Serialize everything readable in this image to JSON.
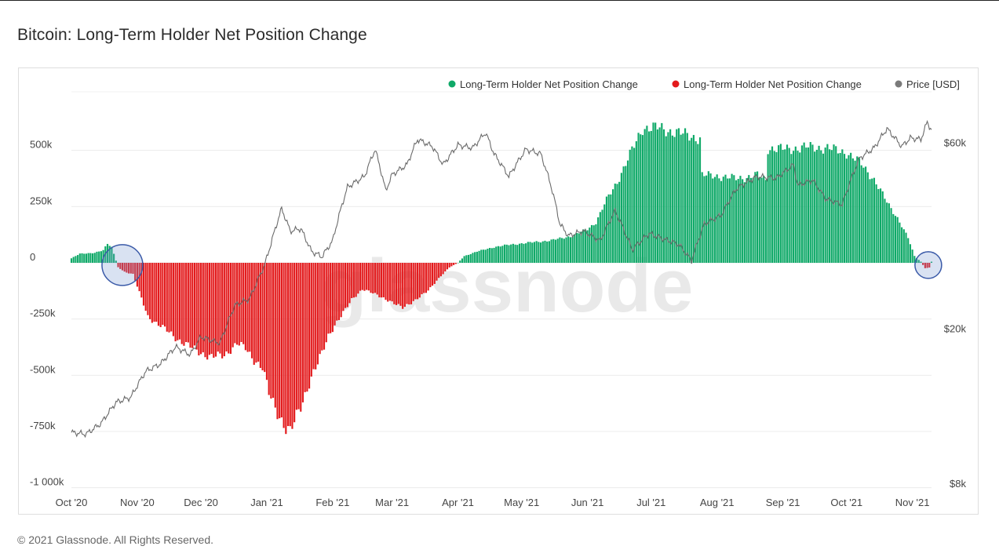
{
  "page": {
    "title": "Bitcoin: Long-Term Holder Net Position Change",
    "copyright": "© 2021 Glassnode. All Rights Reserved."
  },
  "chart_data": {
    "type": "bar",
    "watermark": "glassnode",
    "colors": {
      "positive": "#0fa968",
      "negative": "#e31a1c",
      "price": "#6b6b6b",
      "highlight": "#3a5aa8"
    },
    "legend": {
      "placement": "top-right",
      "items": [
        {
          "label": "Long-Term Holder Net Position Change",
          "color": "#0fa968"
        },
        {
          "label": "Long-Term Holder Net Position Change",
          "color": "#e31a1c"
        },
        {
          "label": "Price [USD]",
          "color": "#7a7a7a"
        }
      ]
    },
    "x_axis": {
      "start": "2020-10-01",
      "end": "2021-11-10",
      "ticks": [
        {
          "date": "2020-10-01",
          "label": "Oct '20"
        },
        {
          "date": "2020-11-01",
          "label": "Nov '20"
        },
        {
          "date": "2020-12-01",
          "label": "Dec '20"
        },
        {
          "date": "2021-01-01",
          "label": "Jan '21"
        },
        {
          "date": "2021-02-01",
          "label": "Feb '21"
        },
        {
          "date": "2021-03-01",
          "label": "Mar '21"
        },
        {
          "date": "2021-04-01",
          "label": "Apr '21"
        },
        {
          "date": "2021-05-01",
          "label": "May '21"
        },
        {
          "date": "2021-06-01",
          "label": "Jun '21"
        },
        {
          "date": "2021-07-01",
          "label": "Jul '21"
        },
        {
          "date": "2021-08-01",
          "label": "Aug '21"
        },
        {
          "date": "2021-09-01",
          "label": "Sep '21"
        },
        {
          "date": "2021-10-01",
          "label": "Oct '21"
        },
        {
          "date": "2021-11-01",
          "label": "Nov '21"
        }
      ]
    },
    "y_left": {
      "min": -1000000,
      "max": 600000,
      "ticks": [
        {
          "value": 500000,
          "label": "500k"
        },
        {
          "value": 250000,
          "label": "250k"
        },
        {
          "value": 0,
          "label": "0"
        },
        {
          "value": -250000,
          "label": "-250k"
        },
        {
          "value": -500000,
          "label": "-500k"
        },
        {
          "value": -750000,
          "label": "-750k"
        },
        {
          "value": -1000000,
          "label": "-1 000k"
        }
      ]
    },
    "y_right": {
      "scale": "log",
      "min": 8000,
      "max": 70000,
      "ticks": [
        {
          "value": 60000,
          "label": "$60k"
        },
        {
          "value": 20000,
          "label": "$20k"
        },
        {
          "value": 8000,
          "label": "$8k"
        }
      ]
    },
    "net_position_keyframes": [
      [
        "2020-10-01",
        20000
      ],
      [
        "2020-10-05",
        40000
      ],
      [
        "2020-10-12",
        45000
      ],
      [
        "2020-10-16",
        55000
      ],
      [
        "2020-10-18",
        85000
      ],
      [
        "2020-10-20",
        70000
      ],
      [
        "2020-10-23",
        -20000
      ],
      [
        "2020-10-26",
        -40000
      ],
      [
        "2020-10-30",
        -50000
      ],
      [
        "2020-11-03",
        -160000
      ],
      [
        "2020-11-06",
        -240000
      ],
      [
        "2020-11-12",
        -280000
      ],
      [
        "2020-11-20",
        -340000
      ],
      [
        "2020-11-27",
        -380000
      ],
      [
        "2020-12-01",
        -400000
      ],
      [
        "2020-12-06",
        -420000
      ],
      [
        "2020-12-12",
        -410000
      ],
      [
        "2020-12-18",
        -360000
      ],
      [
        "2020-12-22",
        -380000
      ],
      [
        "2020-12-26",
        -430000
      ],
      [
        "2020-12-30",
        -470000
      ],
      [
        "2021-01-02",
        -580000
      ],
      [
        "2021-01-06",
        -660000
      ],
      [
        "2021-01-10",
        -740000
      ],
      [
        "2021-01-12",
        -760000
      ],
      [
        "2021-01-15",
        -680000
      ],
      [
        "2021-01-20",
        -560000
      ],
      [
        "2021-01-25",
        -450000
      ],
      [
        "2021-01-30",
        -320000
      ],
      [
        "2021-02-05",
        -240000
      ],
      [
        "2021-02-10",
        -160000
      ],
      [
        "2021-02-15",
        -120000
      ],
      [
        "2021-02-22",
        -140000
      ],
      [
        "2021-03-01",
        -180000
      ],
      [
        "2021-03-06",
        -195000
      ],
      [
        "2021-03-12",
        -170000
      ],
      [
        "2021-03-18",
        -120000
      ],
      [
        "2021-03-24",
        -60000
      ],
      [
        "2021-03-28",
        -20000
      ],
      [
        "2021-04-01",
        0
      ],
      [
        "2021-04-04",
        30000
      ],
      [
        "2021-04-10",
        50000
      ],
      [
        "2021-04-18",
        70000
      ],
      [
        "2021-04-25",
        80000
      ],
      [
        "2021-05-05",
        90000
      ],
      [
        "2021-05-15",
        100000
      ],
      [
        "2021-05-25",
        120000
      ],
      [
        "2021-06-01",
        150000
      ],
      [
        "2021-06-05",
        180000
      ],
      [
        "2021-06-10",
        280000
      ],
      [
        "2021-06-15",
        360000
      ],
      [
        "2021-06-20",
        460000
      ],
      [
        "2021-06-24",
        540000
      ],
      [
        "2021-06-27",
        600000
      ],
      [
        "2021-07-05",
        600000
      ],
      [
        "2021-07-12",
        580000
      ],
      [
        "2021-07-18",
        570000
      ],
      [
        "2021-07-24",
        550000
      ],
      [
        "2021-07-25",
        390000
      ],
      [
        "2021-08-02",
        385000
      ],
      [
        "2021-08-10",
        375000
      ],
      [
        "2021-08-15",
        380000
      ],
      [
        "2021-08-20",
        390000
      ],
      [
        "2021-08-24",
        370000
      ],
      [
        "2021-08-25",
        510000
      ],
      [
        "2021-09-03",
        505000
      ],
      [
        "2021-09-12",
        515000
      ],
      [
        "2021-09-22",
        510000
      ],
      [
        "2021-10-01",
        490000
      ],
      [
        "2021-10-08",
        440000
      ],
      [
        "2021-10-14",
        370000
      ],
      [
        "2021-10-20",
        270000
      ],
      [
        "2021-10-25",
        200000
      ],
      [
        "2021-10-30",
        110000
      ],
      [
        "2021-11-02",
        30000
      ],
      [
        "2021-11-05",
        5000
      ],
      [
        "2021-11-07",
        -25000
      ],
      [
        "2021-11-09",
        -20000
      ],
      [
        "2021-11-10",
        5000
      ]
    ],
    "price_keyframes": [
      [
        "2020-10-01",
        10800
      ],
      [
        "2020-10-08",
        10700
      ],
      [
        "2020-10-15",
        11400
      ],
      [
        "2020-10-22",
        12900
      ],
      [
        "2020-10-29",
        13300
      ],
      [
        "2020-11-05",
        15500
      ],
      [
        "2020-11-12",
        16200
      ],
      [
        "2020-11-19",
        17900
      ],
      [
        "2020-11-26",
        17100
      ],
      [
        "2020-12-01",
        19000
      ],
      [
        "2020-12-10",
        18300
      ],
      [
        "2020-12-17",
        22900
      ],
      [
        "2020-12-24",
        23800
      ],
      [
        "2020-12-31",
        29000
      ],
      [
        "2021-01-03",
        33000
      ],
      [
        "2021-01-08",
        40500
      ],
      [
        "2021-01-12",
        35500
      ],
      [
        "2021-01-17",
        36000
      ],
      [
        "2021-01-22",
        31500
      ],
      [
        "2021-01-27",
        30500
      ],
      [
        "2021-02-01",
        33500
      ],
      [
        "2021-02-08",
        46000
      ],
      [
        "2021-02-16",
        49000
      ],
      [
        "2021-02-21",
        57500
      ],
      [
        "2021-02-26",
        45000
      ],
      [
        "2021-03-01",
        49500
      ],
      [
        "2021-03-08",
        52500
      ],
      [
        "2021-03-13",
        61000
      ],
      [
        "2021-03-20",
        58500
      ],
      [
        "2021-03-25",
        52500
      ],
      [
        "2021-04-01",
        59000
      ],
      [
        "2021-04-08",
        58000
      ],
      [
        "2021-04-14",
        63500
      ],
      [
        "2021-04-18",
        56000
      ],
      [
        "2021-04-25",
        49000
      ],
      [
        "2021-05-03",
        57500
      ],
      [
        "2021-05-10",
        56000
      ],
      [
        "2021-05-15",
        46000
      ],
      [
        "2021-05-19",
        37000
      ],
      [
        "2021-05-23",
        34500
      ],
      [
        "2021-05-30",
        35500
      ],
      [
        "2021-06-07",
        33500
      ],
      [
        "2021-06-14",
        40000
      ],
      [
        "2021-06-22",
        31800
      ],
      [
        "2021-06-30",
        35000
      ],
      [
        "2021-07-06",
        34000
      ],
      [
        "2021-07-14",
        32800
      ],
      [
        "2021-07-20",
        29800
      ],
      [
        "2021-07-26",
        37000
      ],
      [
        "2021-08-03",
        39000
      ],
      [
        "2021-08-10",
        45500
      ],
      [
        "2021-08-14",
        47000
      ],
      [
        "2021-08-20",
        49000
      ],
      [
        "2021-08-29",
        48500
      ],
      [
        "2021-09-06",
        52500
      ],
      [
        "2021-09-08",
        46500
      ],
      [
        "2021-09-15",
        48000
      ],
      [
        "2021-09-21",
        43000
      ],
      [
        "2021-09-29",
        41500
      ],
      [
        "2021-10-03",
        48000
      ],
      [
        "2021-10-07",
        54500
      ],
      [
        "2021-10-14",
        58000
      ],
      [
        "2021-10-20",
        65000
      ],
      [
        "2021-10-27",
        58500
      ],
      [
        "2021-10-31",
        61500
      ],
      [
        "2021-11-05",
        61000
      ],
      [
        "2021-11-08",
        67500
      ],
      [
        "2021-11-10",
        64500
      ]
    ],
    "highlights": [
      {
        "date": "2020-10-25",
        "value": -10000
      },
      {
        "date": "2021-11-07",
        "value": -10000
      }
    ]
  }
}
